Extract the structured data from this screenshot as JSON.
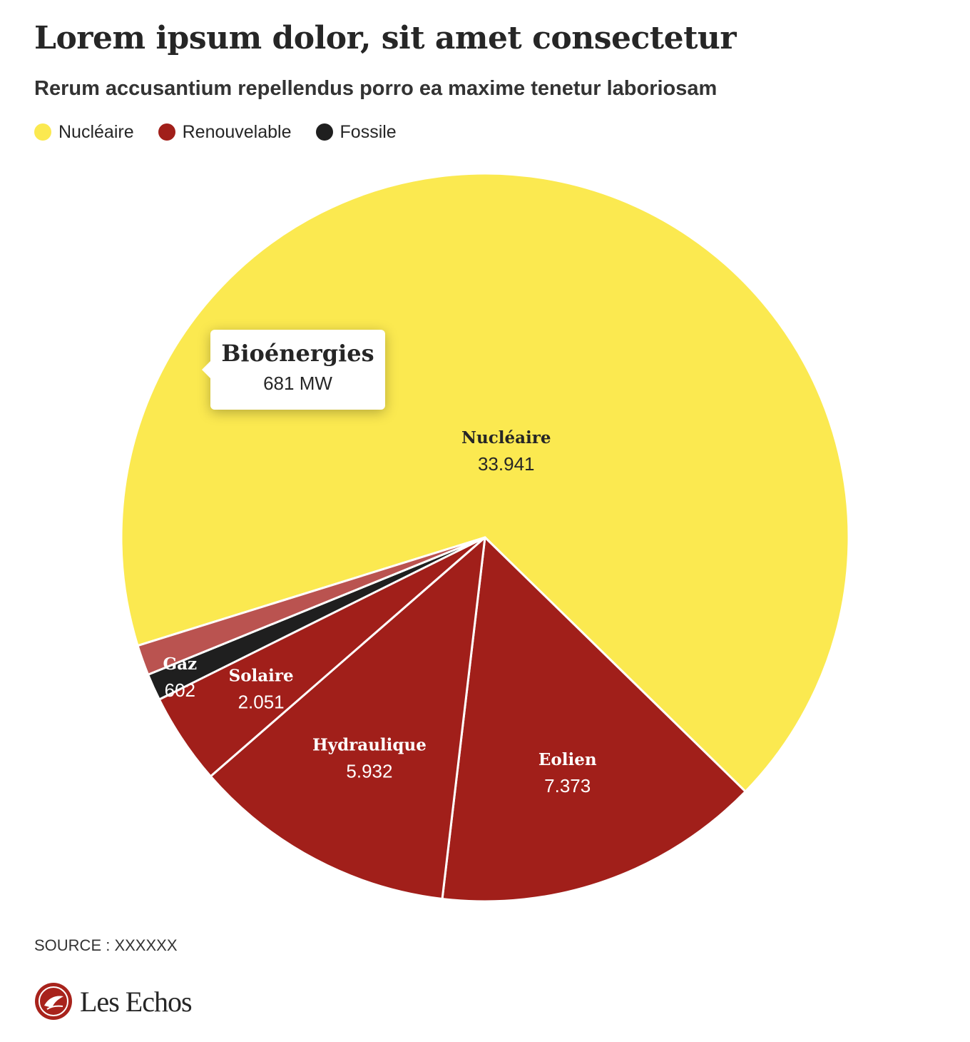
{
  "header": {
    "title": "Lorem ipsum dolor, sit amet consectetur",
    "subtitle": "Rerum accusantium repellendus porro ea maxime tenetur laboriosam"
  },
  "legend": [
    {
      "label": "Nucléaire",
      "color": "#fbe950"
    },
    {
      "label": "Renouvelable",
      "color": "#a11f1a"
    },
    {
      "label": "Fossile",
      "color": "#1f1f1f"
    }
  ],
  "chart_data": {
    "type": "pie",
    "categories": [
      "Nucléaire",
      "Eolien",
      "Hydraulique",
      "Solaire",
      "Gaz",
      "Bioénergies"
    ],
    "values": [
      33941,
      7373,
      5932,
      2051,
      602,
      681
    ],
    "value_labels": [
      "33.941",
      "7.373",
      "5.932",
      "2.051",
      "602",
      "681"
    ],
    "groups": [
      "Nucléaire",
      "Renouvelable",
      "Renouvelable",
      "Renouvelable",
      "Fossile",
      "Renouvelable"
    ],
    "colors": {
      "Nucléaire": "#fbe950",
      "Renouvelable": "#a11f1a",
      "Fossile": "#1f1f1f",
      "highlight": "#ba5350"
    },
    "unit": "MW",
    "highlighted": "Bioénergies",
    "legend_position": "top-left"
  },
  "tooltip": {
    "title": "Bioénergies",
    "value": "681 MW"
  },
  "footer": {
    "source": "SOURCE : XXXXXX",
    "brand": "Les Echos"
  }
}
